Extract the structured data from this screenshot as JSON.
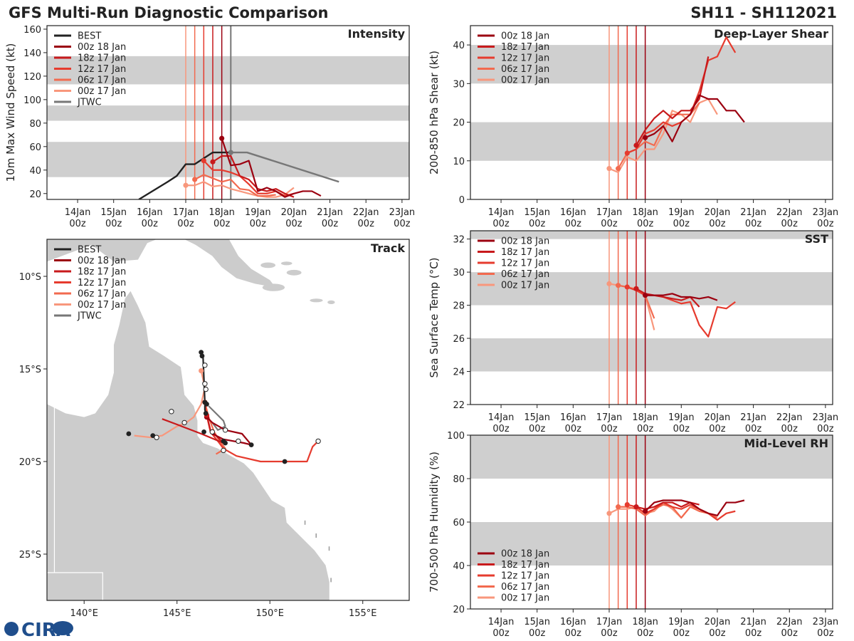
{
  "header": {
    "title": "GFS Multi-Run Diagnostic Comparison",
    "storm_id": "SH11 - SH112021",
    "logo_text": "CIRA"
  },
  "colors": {
    "best": "#222222",
    "jtwc": "#777777",
    "runs": [
      "#9b0010",
      "#c81a1c",
      "#e63b2e",
      "#f26a4f",
      "#f8977c"
    ],
    "band": "#cfcfcf",
    "land": "#cccccc"
  },
  "chart_data": [
    {
      "id": "intensity",
      "type": "line",
      "title": "Intensity",
      "ylabel": "10m Max Wind Speed (kt)",
      "ylim": [
        15,
        163
      ],
      "yticks": [
        20,
        40,
        60,
        80,
        100,
        120,
        140,
        160
      ],
      "bands": [
        [
          34,
          64
        ],
        [
          82,
          95
        ],
        [
          113,
          137
        ]
      ],
      "legend": [
        "BEST",
        "00z 18 Jan",
        "18z 17 Jan",
        "12z 17 Jan",
        "06z 17 Jan",
        "00z 17 Jan",
        "JTWC"
      ],
      "best": {
        "x": [
          15.7,
          16.5,
          16.75,
          17.0,
          17.25,
          17.5,
          17.75,
          18.0,
          18.25
        ],
        "y": [
          15,
          30,
          35,
          45,
          45,
          50,
          55,
          55,
          55
        ]
      },
      "jtwc": {
        "x": [
          18.25,
          18.7,
          21.25
        ],
        "y": [
          55,
          55,
          30
        ]
      },
      "series": [
        {
          "name": "00z 18 Jan",
          "x": [
            18.0,
            18.25,
            18.5,
            18.75,
            19.0,
            19.25,
            19.5,
            19.75,
            20.0,
            20.25,
            20.5,
            20.75
          ],
          "y": [
            67,
            44,
            45,
            48,
            22,
            25,
            22,
            17,
            20,
            22,
            22,
            18
          ]
        },
        {
          "name": "18z 17 Jan",
          "x": [
            17.75,
            18.0,
            18.25,
            18.5,
            18.75,
            19.0,
            19.25,
            19.5,
            19.75,
            20.0
          ],
          "y": [
            47,
            52,
            52,
            35,
            32,
            24,
            22,
            24,
            20,
            17
          ]
        },
        {
          "name": "12z 17 Jan",
          "x": [
            17.5,
            17.75,
            18.0,
            18.25,
            18.5,
            18.75,
            19.0,
            19.25,
            19.5,
            19.75,
            20.0
          ],
          "y": [
            48,
            40,
            40,
            38,
            35,
            28,
            20,
            20,
            22,
            18,
            20
          ]
        },
        {
          "name": "06z 17 Jan",
          "x": [
            17.25,
            17.5,
            17.75,
            18.0,
            18.25,
            18.5,
            18.75,
            19.0,
            19.25,
            19.5
          ],
          "y": [
            32,
            36,
            33,
            30,
            32,
            24,
            23,
            18,
            18,
            19
          ]
        },
        {
          "name": "00z 17 Jan",
          "x": [
            17.0,
            17.25,
            17.5,
            17.75,
            18.0,
            18.25,
            18.5,
            18.75,
            19.0,
            19.25,
            19.5,
            19.75,
            20.0
          ],
          "y": [
            27,
            27,
            30,
            26,
            27,
            24,
            22,
            20,
            18,
            17,
            17,
            19,
            25
          ]
        }
      ]
    },
    {
      "id": "shear",
      "type": "line",
      "title": "Deep-Layer Shear",
      "ylabel": "200-850 hPa Shear (kt)",
      "ylim": [
        0,
        45
      ],
      "yticks": [
        0,
        10,
        20,
        30,
        40
      ],
      "bands": [
        [
          10,
          20
        ],
        [
          30,
          40
        ]
      ],
      "legend": [
        "00z 18 Jan",
        "18z 17 Jan",
        "12z 17 Jan",
        "06z 17 Jan",
        "00z 17 Jan"
      ],
      "series": [
        {
          "name": "00z 18 Jan",
          "x": [
            18.0,
            18.25,
            18.5,
            18.75,
            19.0,
            19.25,
            19.5,
            19.75,
            20.0,
            20.25,
            20.5,
            20.75
          ],
          "y": [
            16,
            17,
            19,
            15,
            20,
            22,
            27,
            26,
            26,
            23,
            23,
            20
          ]
        },
        {
          "name": "18z 17 Jan",
          "x": [
            17.75,
            18.0,
            18.25,
            18.5,
            18.75,
            19.0,
            19.25,
            19.5,
            19.75
          ],
          "y": [
            14,
            18,
            21,
            23,
            21,
            23,
            23,
            26,
            37
          ]
        },
        {
          "name": "12z 17 Jan",
          "x": [
            17.5,
            17.75,
            18.0,
            18.25,
            18.5,
            18.75,
            19.0,
            19.25,
            19.5,
            19.75,
            20.0,
            20.25,
            20.5
          ],
          "y": [
            12,
            13,
            17,
            18,
            20,
            19,
            20,
            22,
            28,
            36,
            37,
            42,
            38
          ]
        },
        {
          "name": "06z 17 Jan",
          "x": [
            17.25,
            17.5,
            17.75,
            18.0,
            18.25,
            18.5,
            18.75,
            19.0,
            19.25,
            19.5
          ],
          "y": [
            8,
            12,
            13,
            15,
            14,
            19,
            22,
            22,
            22,
            25
          ]
        },
        {
          "name": "00z 17 Jan",
          "x": [
            17.0,
            17.25,
            17.5,
            17.75,
            18.0,
            18.25,
            18.5,
            18.75,
            19.0,
            19.25,
            19.5,
            19.75,
            20.0
          ],
          "y": [
            8,
            7,
            11,
            10,
            13,
            13,
            17,
            23,
            22,
            20,
            25,
            26,
            22
          ]
        }
      ]
    },
    {
      "id": "sst",
      "type": "line",
      "title": "SST",
      "ylabel": "Sea Surface Temp (°C)",
      "ylim": [
        22,
        32.5
      ],
      "yticks": [
        22,
        24,
        26,
        28,
        30,
        32
      ],
      "bands": [
        [
          24,
          26
        ],
        [
          28,
          30
        ],
        [
          32,
          32.5
        ]
      ],
      "legend": [
        "00z 18 Jan",
        "18z 17 Jan",
        "12z 17 Jan",
        "06z 17 Jan",
        "00z 17 Jan"
      ],
      "series": [
        {
          "name": "00z 18 Jan",
          "x": [
            18.0,
            18.25,
            18.5,
            18.75,
            19.0,
            19.25,
            19.5,
            19.75,
            20.0
          ],
          "y": [
            28.6,
            28.6,
            28.6,
            28.7,
            28.5,
            28.5,
            28.4,
            28.5,
            28.3
          ]
        },
        {
          "name": "18z 17 Jan",
          "x": [
            17.75,
            18.0,
            18.25,
            18.5,
            18.75,
            19.0,
            19.25,
            19.5
          ],
          "y": [
            29.0,
            28.7,
            28.6,
            28.5,
            28.4,
            28.3,
            28.5,
            27.9
          ]
        },
        {
          "name": "12z 17 Jan",
          "x": [
            17.5,
            17.75,
            18.0,
            18.25,
            18.5,
            18.75,
            19.0,
            19.25,
            19.5,
            19.75,
            20.0,
            20.25,
            20.5
          ],
          "y": [
            29.1,
            28.9,
            28.6,
            28.6,
            28.5,
            28.3,
            28.1,
            28.2,
            26.8,
            26.1,
            27.9,
            27.8,
            28.2
          ]
        },
        {
          "name": "06z 17 Jan",
          "x": [
            17.25,
            17.5,
            17.75,
            18.0,
            18.25
          ],
          "y": [
            29.2,
            29.1,
            28.9,
            28.6,
            27.2
          ]
        },
        {
          "name": "00z 17 Jan",
          "x": [
            17.0,
            17.25,
            17.5,
            17.75,
            18.0,
            18.25
          ],
          "y": [
            29.3,
            29.2,
            29.1,
            29.0,
            28.6,
            26.5
          ]
        }
      ]
    },
    {
      "id": "rh",
      "type": "line",
      "title": "Mid-Level RH",
      "ylabel": "700-500 hPa Humidity (%)",
      "ylim": [
        20,
        100
      ],
      "yticks": [
        20,
        40,
        60,
        80,
        100
      ],
      "bands": [
        [
          40,
          60
        ],
        [
          80,
          100
        ]
      ],
      "legend": [
        "00z 18 Jan",
        "18z 17 Jan",
        "12z 17 Jan",
        "06z 17 Jan",
        "00z 17 Jan"
      ],
      "series": [
        {
          "name": "00z 18 Jan",
          "x": [
            18.0,
            18.25,
            18.5,
            18.75,
            19.0,
            19.25,
            19.5,
            19.75,
            20.0,
            20.25,
            20.5,
            20.75
          ],
          "y": [
            65,
            69,
            70,
            70,
            70,
            69,
            66,
            64,
            63,
            69,
            69,
            70
          ]
        },
        {
          "name": "18z 17 Jan",
          "x": [
            17.75,
            18.0,
            18.25,
            18.5,
            18.75,
            19.0,
            19.25,
            19.5
          ],
          "y": [
            67,
            66,
            67,
            69,
            69,
            67,
            69,
            68
          ]
        },
        {
          "name": "12z 17 Jan",
          "x": [
            17.5,
            17.75,
            18.0,
            18.25,
            18.5,
            18.75,
            19.0,
            19.25,
            19.5,
            19.75,
            20.0,
            20.25,
            20.5
          ],
          "y": [
            68,
            67,
            64,
            66,
            69,
            67,
            66,
            68,
            66,
            64,
            61,
            64,
            65
          ]
        },
        {
          "name": "06z 17 Jan",
          "x": [
            17.25,
            17.5,
            17.75,
            18.0,
            18.25,
            18.5,
            18.75,
            19.0,
            19.25,
            19.5,
            19.75,
            20.0
          ],
          "y": [
            67,
            67,
            66,
            63,
            66,
            68,
            67,
            62,
            67,
            65,
            64,
            62
          ]
        },
        {
          "name": "00z 17 Jan",
          "x": [
            17.0,
            17.25,
            17.5,
            17.75,
            18.0,
            18.25,
            18.5,
            18.75,
            19.0,
            19.25,
            19.5,
            19.75,
            20.0
          ],
          "y": [
            64,
            66,
            66,
            67,
            64,
            65,
            69,
            66,
            62,
            67,
            66,
            64,
            63
          ]
        }
      ]
    },
    {
      "id": "track",
      "type": "scatter",
      "title": "Track",
      "xlim": [
        138.0,
        157.5
      ],
      "ylim": [
        -27.5,
        -8.0
      ],
      "xticks": [
        140,
        145,
        150,
        155
      ],
      "xtick_labels": [
        "140°E",
        "145°E",
        "150°E",
        "155°E"
      ],
      "yticks": [
        -10,
        -15,
        -20,
        -25
      ],
      "ytick_labels": [
        "10°S",
        "15°S",
        "20°S",
        "25°S"
      ],
      "legend": [
        "BEST",
        "00z 18 Jan",
        "18z 17 Jan",
        "12z 17 Jan",
        "06z 17 Jan",
        "00z 17 Jan",
        "JTWC"
      ],
      "best": {
        "lon": [
          146.3,
          146.35,
          146.4,
          146.5,
          146.5,
          146.55,
          146.6
        ],
        "lat": [
          -14.1,
          -14.2,
          -14.3,
          -16.8,
          -17.2,
          -17.4,
          -17.5
        ]
      },
      "jtwc": {
        "lon": [
          146.7,
          147.1,
          147.5,
          147.6,
          147.2,
          146.9
        ],
        "lat": [
          -17.0,
          -17.4,
          -17.8,
          -18.1,
          -18.3,
          -17.9
        ]
      },
      "series": [
        {
          "name": "00z 18 Jan",
          "lon": [
            146.6,
            146.9,
            147.6,
            148.5,
            149.0,
            148.6,
            147.5,
            146.9
          ],
          "lat": [
            -17.6,
            -17.9,
            -18.3,
            -18.5,
            -19.1,
            -19.0,
            -18.8,
            -18.5
          ]
        },
        {
          "name": "18z 17 Jan",
          "lon": [
            146.6,
            146.8,
            147.2,
            147.5,
            146.3,
            145.0,
            144.2
          ],
          "lat": [
            -17.5,
            -18.3,
            -18.7,
            -19.0,
            -18.5,
            -18.0,
            -17.7
          ]
        },
        {
          "name": "12z 17 Jan",
          "lon": [
            146.5,
            146.6,
            146.8,
            147.2,
            147.5,
            148.2,
            149.5,
            150.8,
            152.0,
            152.3,
            152.6
          ],
          "lat": [
            -16.8,
            -17.5,
            -18.4,
            -18.9,
            -19.3,
            -19.7,
            -20.0,
            -20.0,
            -20.0,
            -19.2,
            -18.9
          ]
        },
        {
          "name": "06z 17 Jan",
          "lon": [
            146.5,
            146.7,
            147.0,
            147.3,
            147.6,
            147.1
          ],
          "lat": [
            -16.8,
            -17.6,
            -18.4,
            -18.9,
            -19.3,
            -19.6
          ]
        },
        {
          "name": "00z 17 Jan",
          "lon": [
            146.3,
            146.5,
            146.3,
            145.9,
            145.5,
            145.0,
            144.2,
            143.6,
            142.7
          ],
          "lat": [
            -15.1,
            -16.0,
            -16.9,
            -17.6,
            -17.9,
            -18.1,
            -18.6,
            -18.7,
            -18.6
          ]
        }
      ],
      "best_dots": {
        "lon": [
          146.3,
          146.35,
          146.5,
          146.6,
          146.55,
          146.45,
          147.5,
          147.6,
          149.0,
          150.8,
          143.7,
          142.4
        ],
        "lat": [
          -14.1,
          -14.3,
          -16.8,
          -16.9,
          -17.4,
          -18.4,
          -18.9,
          -19.0,
          -19.1,
          -20.0,
          -18.6,
          -18.5
        ]
      },
      "open_dots": {
        "lon": [
          146.5,
          146.5,
          146.55,
          147.6,
          147.5,
          148.3,
          144.7,
          145.4,
          143.9,
          152.6,
          146.9
        ],
        "lat": [
          -14.8,
          -15.8,
          -16.1,
          -18.3,
          -19.4,
          -18.9,
          -17.3,
          -17.9,
          -18.7,
          -18.9,
          -18.4
        ]
      }
    }
  ],
  "time_axis": {
    "xlim": [
      13.15,
      23.2
    ],
    "ticks": [
      14,
      15,
      16,
      17,
      18,
      19,
      20,
      21,
      22,
      23
    ],
    "labels_top": [
      "14Jan",
      "15Jan",
      "16Jan",
      "17Jan",
      "18Jan",
      "19Jan",
      "20Jan",
      "21Jan",
      "22Jan",
      "23Jan"
    ],
    "labels_bottom": [
      "00z",
      "00z",
      "00z",
      "00z",
      "00z",
      "00z",
      "00z",
      "00z",
      "00z",
      "00z"
    ],
    "init_lines": [
      17.0,
      17.25,
      17.5,
      17.75,
      18.0
    ],
    "jtwc_line": 18.25
  }
}
